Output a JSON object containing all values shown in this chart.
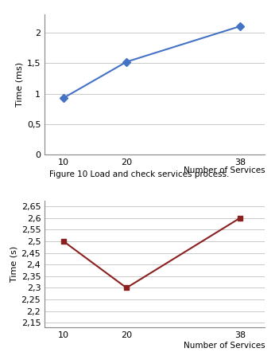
{
  "chart1": {
    "x": [
      10,
      20,
      38
    ],
    "y": [
      0.93,
      1.52,
      2.1
    ],
    "xlabel": "Number of Services",
    "ylabel": "Time (ms)",
    "yticks": [
      0,
      0.5,
      1,
      1.5,
      2
    ],
    "ytick_labels": [
      "0",
      "0,5",
      "1",
      "1,5",
      "2"
    ],
    "ylim": [
      0,
      2.3
    ],
    "xlim": [
      7,
      42
    ],
    "xticks": [
      10,
      20,
      38
    ],
    "line_color": "#4472C4",
    "marker": "D",
    "marker_color": "#4472C4",
    "caption": "Figure 10 Load and check services process."
  },
  "chart2": {
    "x": [
      10,
      20,
      38
    ],
    "y": [
      2.5,
      2.3,
      2.6
    ],
    "xlabel": "Number of Services",
    "ylabel": "Time (s)",
    "yticks": [
      2.15,
      2.2,
      2.25,
      2.3,
      2.35,
      2.4,
      2.45,
      2.5,
      2.55,
      2.6,
      2.65
    ],
    "ytick_labels": [
      "2,15",
      "2,2",
      "2,25",
      "2,3",
      "2,35",
      "2,4",
      "2,45",
      "2,5",
      "2,55",
      "2,6",
      "2,65"
    ],
    "ylim": [
      2.13,
      2.675
    ],
    "xlim": [
      7,
      42
    ],
    "xticks": [
      10,
      20,
      38
    ],
    "line_color": "#8B2020",
    "marker": "s",
    "marker_color": "#8B2020"
  },
  "background_color": "#ffffff",
  "grid_color": "#C0C0C0"
}
